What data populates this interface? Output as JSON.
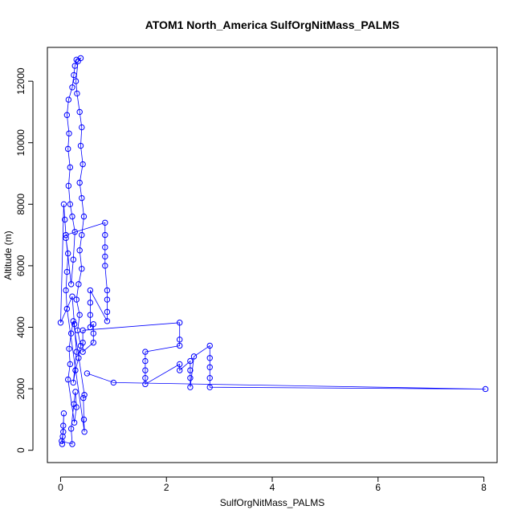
{
  "chart_data": {
    "type": "scatter",
    "title": "ATOM1 North_America SulfOrgNitMass_PALMS",
    "xlabel": "SulfOrgNitMass_PALMS",
    "ylabel": "Altitude (m)",
    "xlim": [
      -0.25,
      8.25
    ],
    "ylim": [
      -400,
      13100
    ],
    "xticks": [
      0,
      2,
      4,
      6,
      8
    ],
    "yticks": [
      0,
      2000,
      4000,
      6000,
      8000,
      10000,
      12000
    ],
    "grid": false,
    "legend": "none",
    "marker": "open-circle",
    "connect_points": true,
    "color": "#0000ff",
    "points": [
      [
        0.03,
        200
      ],
      [
        0.04,
        450
      ],
      [
        0.05,
        800
      ],
      [
        0.06,
        1200
      ],
      [
        0.05,
        600
      ],
      [
        0.02,
        300
      ],
      [
        0.22,
        200
      ],
      [
        0.2,
        700
      ],
      [
        0.25,
        1500
      ],
      [
        0.28,
        1900
      ],
      [
        0.3,
        1400
      ],
      [
        0.26,
        900
      ],
      [
        0.14,
        2300
      ],
      [
        0.18,
        2800
      ],
      [
        0.16,
        3300
      ],
      [
        0.2,
        3800
      ],
      [
        0.24,
        4200
      ],
      [
        0.45,
        1800
      ],
      [
        0.43,
        1700
      ],
      [
        0.44,
        1000
      ],
      [
        0.45,
        600
      ],
      [
        0.12,
        4600
      ],
      [
        0.1,
        5200
      ],
      [
        0.12,
        5800
      ],
      [
        0.14,
        6400
      ],
      [
        0.1,
        6900
      ],
      [
        0.2,
        5400
      ],
      [
        0.24,
        6200
      ],
      [
        0.27,
        7100
      ],
      [
        0.22,
        7600
      ],
      [
        0.18,
        8000
      ],
      [
        0.15,
        8600
      ],
      [
        0.18,
        9200
      ],
      [
        0.14,
        9800
      ],
      [
        0.16,
        10300
      ],
      [
        0.12,
        10900
      ],
      [
        0.15,
        11400
      ],
      [
        0.22,
        11800
      ],
      [
        0.25,
        12200
      ],
      [
        0.27,
        12500
      ],
      [
        0.3,
        12700
      ],
      [
        0.38,
        12750
      ],
      [
        0.33,
        12650
      ],
      [
        0.29,
        12000
      ],
      [
        0.31,
        11600
      ],
      [
        0.36,
        11000
      ],
      [
        0.4,
        10500
      ],
      [
        0.38,
        9900
      ],
      [
        0.42,
        9300
      ],
      [
        0.36,
        8700
      ],
      [
        0.4,
        8200
      ],
      [
        0.44,
        7600
      ],
      [
        0.4,
        7000
      ],
      [
        0.36,
        6500
      ],
      [
        0.4,
        5900
      ],
      [
        0.34,
        5400
      ],
      [
        0.3,
        4900
      ],
      [
        0.36,
        4400
      ],
      [
        0.32,
        3900
      ],
      [
        0.38,
        3400
      ],
      [
        0.34,
        3000
      ],
      [
        0.28,
        2600
      ],
      [
        0.24,
        2200
      ],
      [
        0.3,
        3200
      ],
      [
        0.26,
        4100
      ],
      [
        0.22,
        5000
      ],
      [
        0.0,
        4150
      ],
      [
        0.06,
        8000
      ],
      [
        0.08,
        7500
      ],
      [
        0.1,
        7000
      ],
      [
        0.84,
        7400
      ],
      [
        0.84,
        7000
      ],
      [
        0.84,
        6600
      ],
      [
        0.84,
        6300
      ],
      [
        0.84,
        6000
      ],
      [
        0.88,
        5200
      ],
      [
        0.88,
        4900
      ],
      [
        0.88,
        4500
      ],
      [
        0.88,
        4200
      ],
      [
        0.56,
        5200
      ],
      [
        0.56,
        4800
      ],
      [
        0.56,
        4400
      ],
      [
        0.56,
        4000
      ],
      [
        0.62,
        4100
      ],
      [
        0.62,
        3800
      ],
      [
        0.62,
        3500
      ],
      [
        0.42,
        3200
      ],
      [
        0.42,
        3500
      ],
      [
        0.42,
        3900
      ],
      [
        2.25,
        4150
      ],
      [
        2.25,
        3600
      ],
      [
        2.25,
        3400
      ],
      [
        1.6,
        3200
      ],
      [
        1.6,
        2900
      ],
      [
        1.6,
        2600
      ],
      [
        1.6,
        2350
      ],
      [
        1.6,
        2150
      ],
      [
        2.25,
        2800
      ],
      [
        2.25,
        2600
      ],
      [
        2.45,
        2900
      ],
      [
        2.45,
        2600
      ],
      [
        2.45,
        2350
      ],
      [
        2.45,
        2050
      ],
      [
        2.52,
        3050
      ],
      [
        2.82,
        3400
      ],
      [
        2.82,
        3000
      ],
      [
        2.82,
        2700
      ],
      [
        2.82,
        2350
      ],
      [
        2.82,
        2050
      ],
      [
        8.03,
        1990
      ],
      [
        1.0,
        2200
      ],
      [
        0.5,
        2500
      ]
    ]
  }
}
